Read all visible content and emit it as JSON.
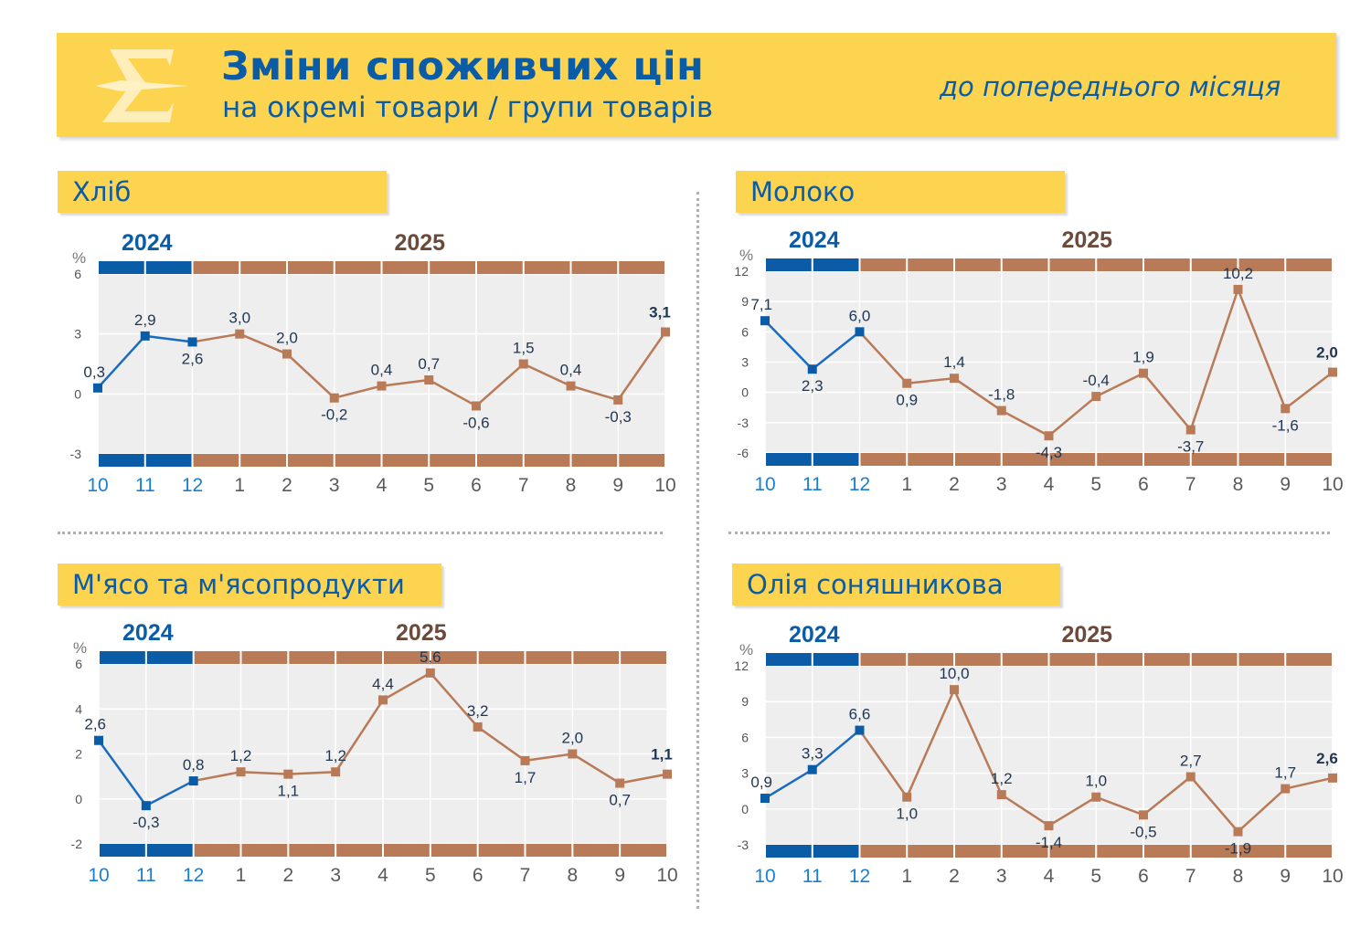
{
  "header": {
    "title": "Зміни споживчих цін",
    "subtitle": "на окремі товари / групи товарів",
    "note": "до попереднього місяця",
    "logo_icon": "sigma-trident-icon"
  },
  "colors": {
    "yellow": "#fdd44f",
    "blue": "#0a5ca6",
    "brown": "#b97a57",
    "plot_bg": "#eeeeee"
  },
  "chart_data": [
    {
      "type": "line",
      "title": "Хліб",
      "unit": "%",
      "years": [
        "2024",
        "2025"
      ],
      "categories": [
        "10",
        "11",
        "12",
        "1",
        "2",
        "3",
        "4",
        "5",
        "6",
        "7",
        "8",
        "9",
        "10"
      ],
      "values": [
        0.3,
        2.9,
        2.6,
        3.0,
        2.0,
        -0.2,
        0.4,
        0.7,
        -0.6,
        1.5,
        0.4,
        -0.3,
        3.1
      ],
      "yticks": [
        6,
        3,
        0,
        -3
      ],
      "ylim": [
        -3,
        6
      ],
      "grid": true
    },
    {
      "type": "line",
      "title": "Молоко",
      "unit": "%",
      "years": [
        "2024",
        "2025"
      ],
      "categories": [
        "10",
        "11",
        "12",
        "1",
        "2",
        "3",
        "4",
        "5",
        "6",
        "7",
        "8",
        "9",
        "10"
      ],
      "values": [
        7.1,
        2.3,
        6.0,
        0.9,
        1.4,
        -1.8,
        -4.3,
        -0.4,
        1.9,
        -3.7,
        10.2,
        -1.6,
        2.0
      ],
      "yticks": [
        12,
        9,
        6,
        3,
        0,
        -3,
        -6
      ],
      "ylim": [
        -6,
        12
      ],
      "grid": true
    },
    {
      "type": "line",
      "title": "М'ясо та м'ясопродукти",
      "unit": "%",
      "years": [
        "2024",
        "2025"
      ],
      "categories": [
        "10",
        "11",
        "12",
        "1",
        "2",
        "3",
        "4",
        "5",
        "6",
        "7",
        "8",
        "9",
        "10"
      ],
      "values": [
        2.6,
        -0.3,
        0.8,
        1.2,
        1.1,
        1.2,
        4.4,
        5.6,
        3.2,
        1.7,
        2.0,
        0.7,
        1.1
      ],
      "yticks": [
        6,
        4,
        2,
        0,
        -2
      ],
      "ylim": [
        -2,
        6
      ],
      "grid": true
    },
    {
      "type": "line",
      "title": "Олія соняшникова",
      "unit": "%",
      "years": [
        "2024",
        "2025"
      ],
      "categories": [
        "10",
        "11",
        "12",
        "1",
        "2",
        "3",
        "4",
        "5",
        "6",
        "7",
        "8",
        "9",
        "10"
      ],
      "values": [
        0.9,
        3.3,
        6.6,
        1.0,
        10.0,
        1.2,
        -1.4,
        1.0,
        -0.5,
        2.7,
        -1.9,
        1.7,
        2.6
      ],
      "yticks": [
        12,
        9,
        6,
        3,
        0,
        -3
      ],
      "ylim": [
        -3,
        12
      ],
      "grid": true
    }
  ]
}
